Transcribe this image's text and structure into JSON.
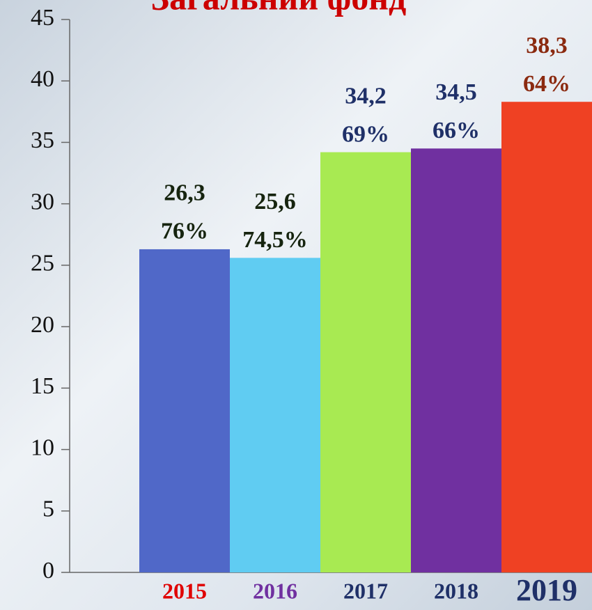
{
  "chart_data": {
    "type": "bar",
    "title": "Загальний фонд",
    "categories": [
      "2015",
      "2016",
      "2017",
      "2018",
      "2019"
    ],
    "values": [
      26.3,
      25.6,
      34.2,
      34.5,
      38.3
    ],
    "value_labels": [
      "26,3",
      "25,6",
      "34,2",
      "34,5",
      "38,3"
    ],
    "shares": [
      76,
      74.5,
      69,
      66,
      64
    ],
    "share_labels": [
      "76%",
      "74,5%",
      "69%",
      "66%",
      "64%"
    ],
    "colors": [
      "#5068c8",
      "#60ccf2",
      "#a8ea52",
      "#7030a0",
      "#ef4123"
    ],
    "label_colors": [
      "#16240f",
      "#16240f",
      "#1f3068",
      "#1f3068",
      "#8b2a10"
    ],
    "category_colors": [
      "#e00000",
      "#7030a0",
      "#1f3068",
      "#1f3068",
      "#1f3068"
    ],
    "ylim": [
      0,
      45
    ],
    "yticks": [
      0,
      5,
      10,
      15,
      20,
      25,
      30,
      35,
      40,
      45
    ]
  }
}
